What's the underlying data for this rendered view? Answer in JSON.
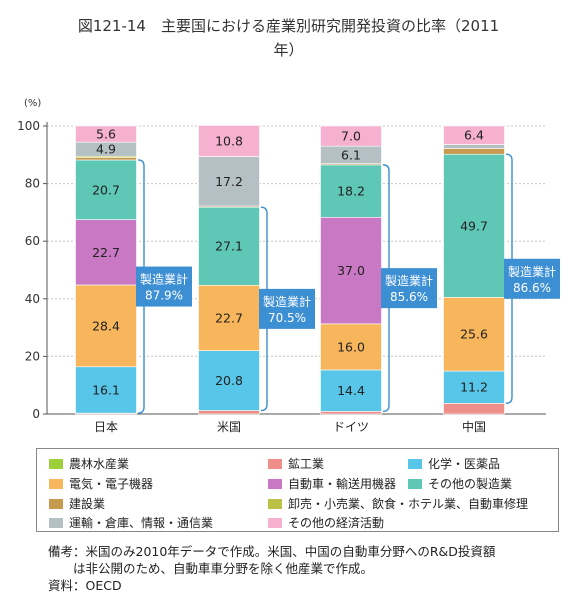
{
  "title": "図121-14　主要国における産業別研究開発投資の比率（2011\n年）",
  "chart_data": {
    "type": "bar",
    "stacked": true,
    "ylabel": "(%)",
    "ylim": [
      0,
      100
    ],
    "yticks": [
      0,
      20,
      40,
      60,
      80,
      100
    ],
    "categories": [
      "日本",
      "米国",
      "ドイツ",
      "中国"
    ],
    "series": [
      {
        "name": "農林水産業",
        "color": "#9ccf3a",
        "values": [
          0.0,
          0.0,
          0.0,
          0.0
        ],
        "labels": [
          "",
          "",
          "",
          ""
        ]
      },
      {
        "name": "鉱工業",
        "color": "#ee8f8a",
        "values": [
          0.3,
          1.2,
          0.9,
          3.7
        ],
        "labels": [
          "",
          "",
          "",
          ""
        ]
      },
      {
        "name": "化学・医薬品",
        "color": "#58c6e8",
        "values": [
          16.1,
          20.8,
          14.4,
          11.2
        ],
        "labels": [
          "16.1",
          "20.8",
          "14.4",
          "11.2"
        ]
      },
      {
        "name": "電気・電子機器",
        "color": "#f8b65c",
        "values": [
          28.4,
          22.7,
          16.0,
          25.6
        ],
        "labels": [
          "28.4",
          "22.7",
          "16.0",
          "25.6"
        ]
      },
      {
        "name": "自動車・輸送用機器",
        "color": "#c979c4",
        "values": [
          22.7,
          0.0,
          37.0,
          0.0
        ],
        "labels": [
          "22.7",
          "",
          "37.0",
          ""
        ]
      },
      {
        "name": "その他の製造業",
        "color": "#5ec7b6",
        "values": [
          20.7,
          27.1,
          18.2,
          49.7
        ],
        "labels": [
          "20.7",
          "27.1",
          "18.2",
          "49.7"
        ]
      },
      {
        "name": "建設業",
        "color": "#c89a50",
        "values": [
          0.8,
          0.4,
          0.4,
          2.0
        ],
        "labels": [
          "",
          "",
          "",
          ""
        ]
      },
      {
        "name": "卸売・小売業、飲食・ホテル業、自動車修理",
        "color": "#bcc246",
        "values": [
          0.5,
          0.0,
          0.0,
          0.0
        ],
        "labels": [
          "",
          "",
          "",
          ""
        ]
      },
      {
        "name": "運輸・倉庫、情報・通信業",
        "color": "#b5c0c5",
        "values": [
          4.9,
          17.2,
          6.1,
          1.4
        ],
        "labels": [
          "4.9",
          "17.2",
          "6.1",
          ""
        ]
      },
      {
        "name": "その他の経済活動",
        "color": "#f6b0d0",
        "values": [
          5.6,
          10.8,
          7.0,
          6.4
        ],
        "labels": [
          "5.6",
          "10.8",
          "7.0",
          "6.4"
        ]
      }
    ],
    "annotations": [
      {
        "category": "日本",
        "label": "製造業計",
        "value": "87.9%"
      },
      {
        "category": "米国",
        "label": "製造業計",
        "value": "70.5%"
      },
      {
        "category": "ドイツ",
        "label": "製造業計",
        "value": "85.6%"
      },
      {
        "category": "中国",
        "label": "製造業計",
        "value": "86.6%"
      }
    ],
    "legend_position": "bottom"
  },
  "note": "備考：米国のみ2010年データで作成。米国、中国の自動車分野へのR&D投資額\n　　は非公開のため、自動車車分野を除く他産業で作成。\n資料：OECD"
}
